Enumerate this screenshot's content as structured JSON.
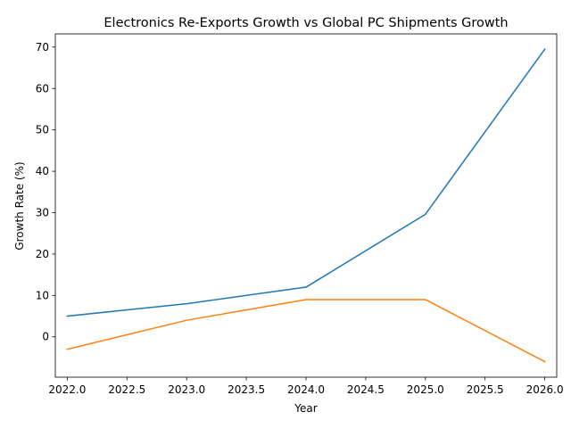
{
  "chart_data": {
    "type": "line",
    "title": "Electronics Re-Exports Growth vs Global PC Shipments Growth",
    "xlabel": "Year",
    "ylabel": "Growth Rate (%)",
    "x": [
      2022,
      2023,
      2024,
      2025,
      2026
    ],
    "xlim": [
      2021.9,
      2026.1
    ],
    "ylim": [
      -9.75,
      73.2
    ],
    "x_ticks": [
      2022.0,
      2022.5,
      2023.0,
      2023.5,
      2024.0,
      2024.5,
      2025.0,
      2025.5,
      2026.0
    ],
    "x_tick_labels": [
      "2022.0",
      "2022.5",
      "2023.0",
      "2023.5",
      "2024.0",
      "2024.5",
      "2025.0",
      "2025.5",
      "2026.0"
    ],
    "y_ticks": [
      0,
      10,
      20,
      30,
      40,
      50,
      60,
      70
    ],
    "y_tick_labels": [
      "0",
      "10",
      "20",
      "30",
      "40",
      "50",
      "60",
      "70"
    ],
    "grid": false,
    "legend": "none",
    "series": [
      {
        "name": "Electronics Re-Exports Growth",
        "color": "#1f77b4",
        "values": [
          5.0,
          8.0,
          12.0,
          29.6,
          69.5
        ]
      },
      {
        "name": "Global PC Shipments Growth",
        "color": "#ff7f0e",
        "values": [
          -3.0,
          4.0,
          9.0,
          9.0,
          -6.0
        ]
      }
    ]
  }
}
